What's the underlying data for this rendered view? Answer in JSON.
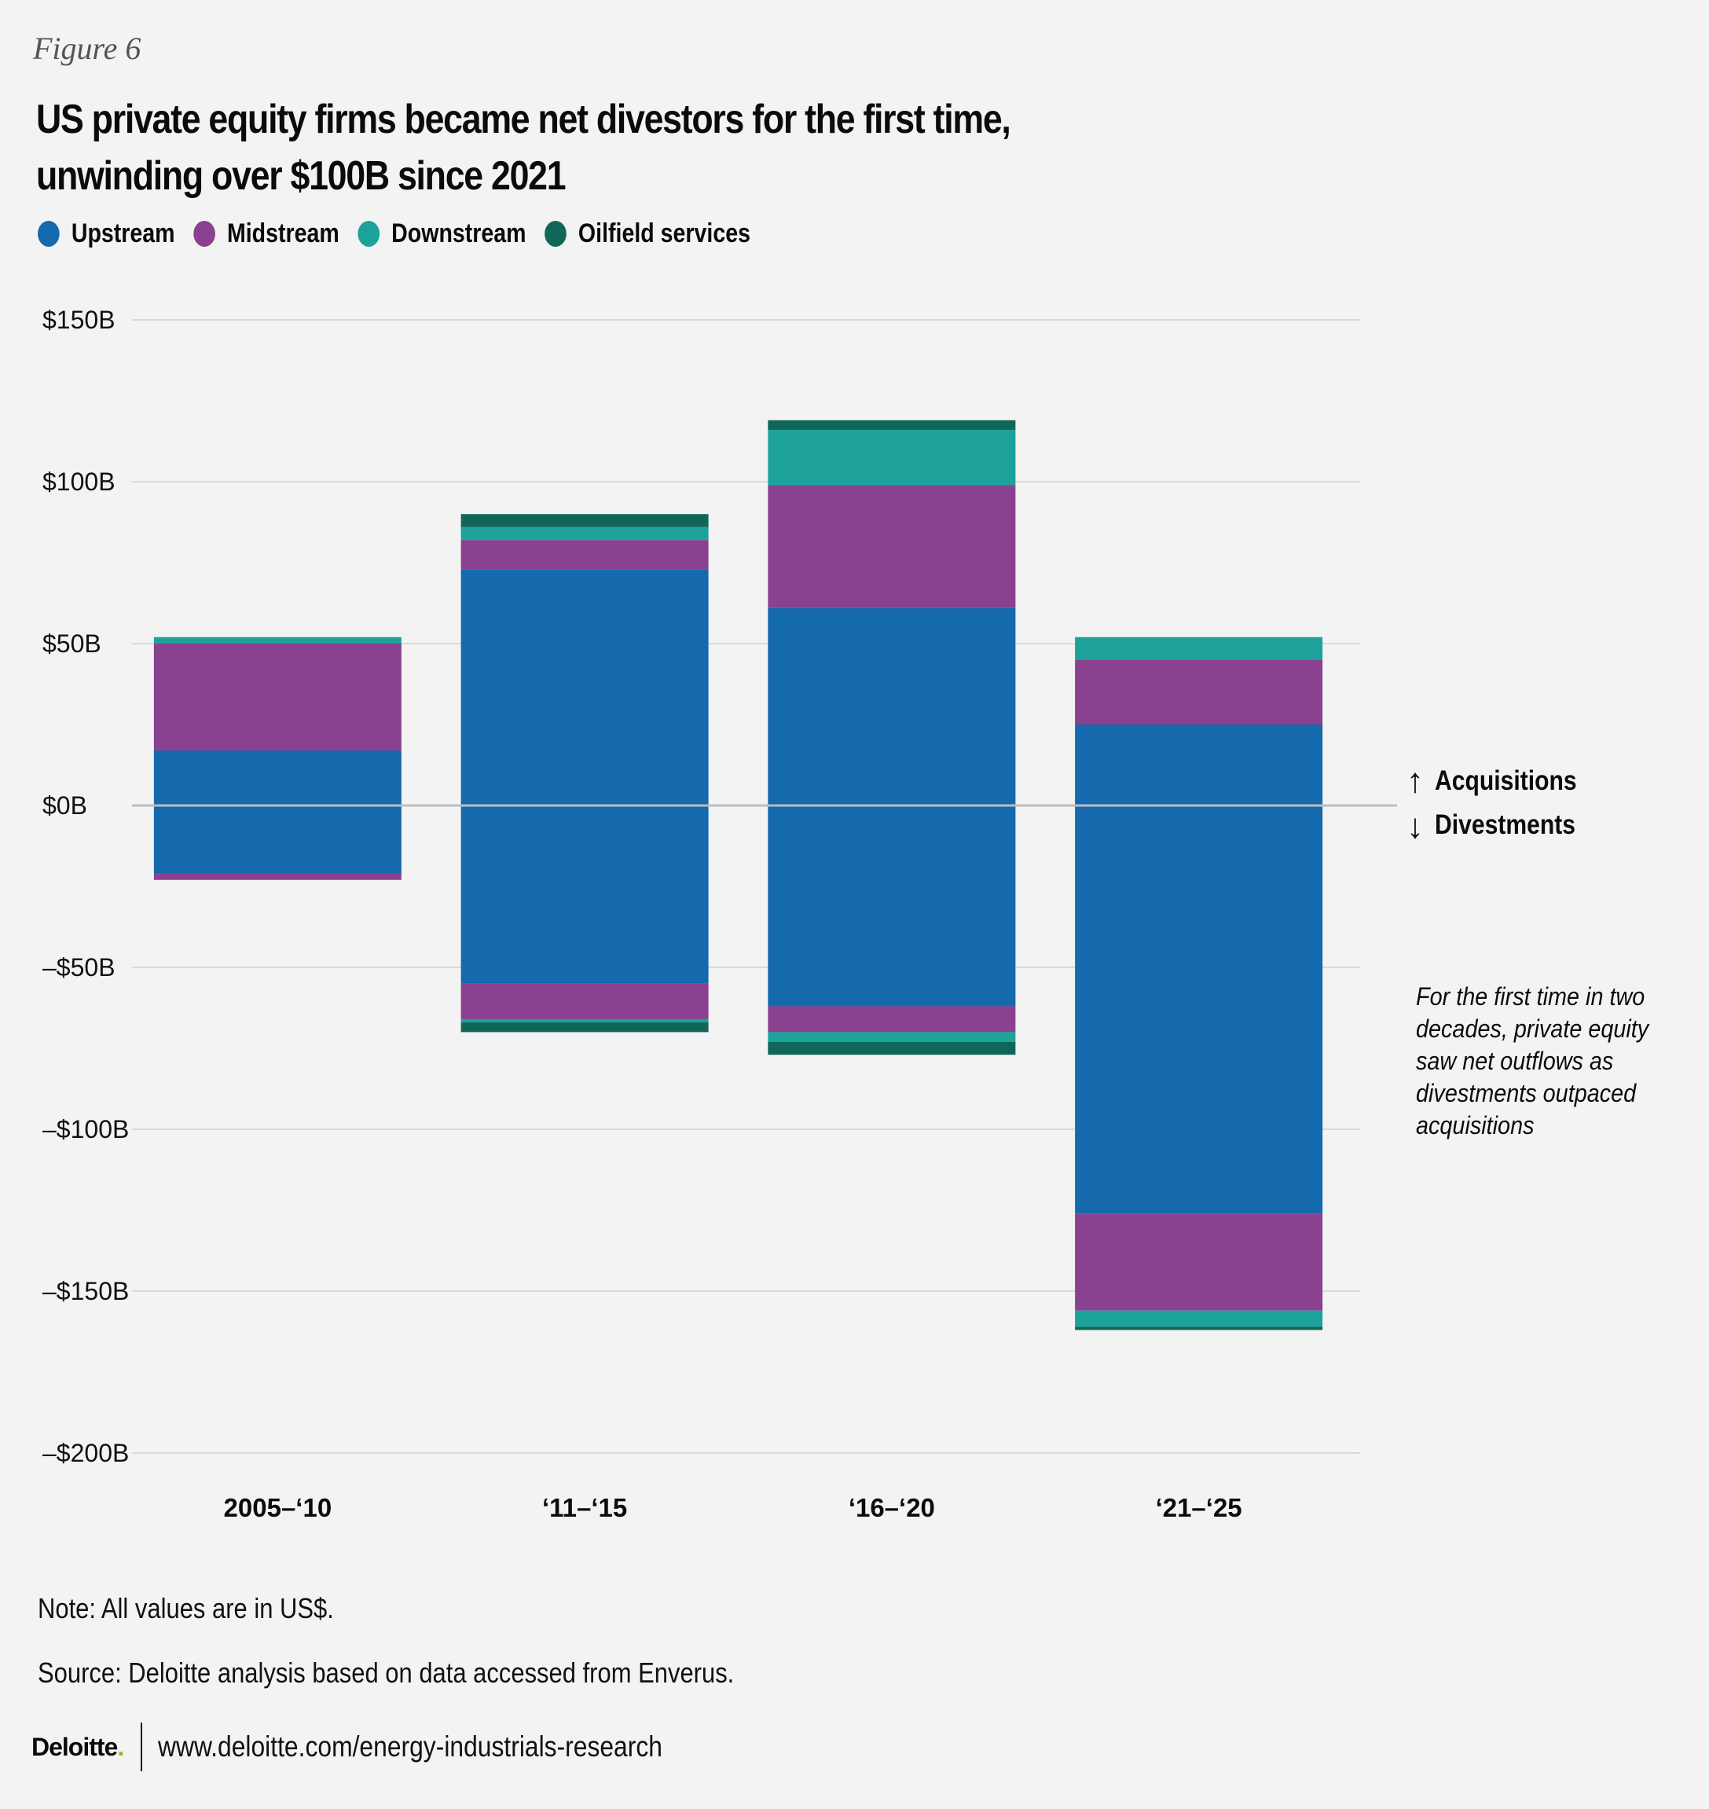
{
  "figure_label": "Figure 6",
  "title": "US private equity firms became net divestors for the first time, unwinding over $100B since 2021",
  "colors": {
    "upstream": "#1569ad",
    "midstream": "#8a418f",
    "downstream": "#1ca29b",
    "oilfield": "#106757",
    "grid": "#d9d9d9",
    "zero_line": "#bdbdbd"
  },
  "legend": [
    {
      "label": "Upstream",
      "color": "#1569ad"
    },
    {
      "label": "Midstream",
      "color": "#8a418f"
    },
    {
      "label": "Downstream",
      "color": "#1ca29b"
    },
    {
      "label": "Oilfield services",
      "color": "#106757"
    }
  ],
  "direction_labels": {
    "up_arrow": "↑",
    "up": "Acquisitions",
    "down_arrow": "↓",
    "down": "Divestments"
  },
  "annotation": "For the first time in two decades, private equity saw net outflows as divestments outpaced acquisitions",
  "note": "Note: All values are in US$.",
  "source": "Source: Deloitte analysis based on data accessed from Enverus.",
  "footer": {
    "logo": "Deloitte",
    "logo_dot": ".",
    "url": "www.deloitte.com/energy-industrials-research"
  },
  "chart_data": {
    "type": "bar",
    "stacked": true,
    "title": "US private equity firms became net divestors for the first time, unwinding over $100B since 2021",
    "xlabel": "",
    "ylabel": "",
    "unit": "US$ billions",
    "categories": [
      "2005–‘10",
      "‘11–‘15",
      "‘16–‘20",
      "‘21–‘25"
    ],
    "ylim": [
      -200,
      150
    ],
    "yticks": [
      150,
      100,
      50,
      0,
      -50,
      -100,
      -150,
      -200
    ],
    "ytick_labels": [
      "$150B",
      "$100B",
      "$50B",
      "$0B",
      "–$50B",
      "–$100B",
      "–$150B",
      "–$200B"
    ],
    "grid": true,
    "legend_position": "top-left",
    "series": [
      {
        "name": "Upstream",
        "key": "upstream",
        "acquisitions": [
          17,
          73,
          61,
          25
        ],
        "divestments": [
          -21,
          -55,
          -62,
          -126
        ]
      },
      {
        "name": "Midstream",
        "key": "midstream",
        "acquisitions": [
          33,
          9,
          38,
          20
        ],
        "divestments": [
          -2,
          -11,
          -8,
          -30
        ]
      },
      {
        "name": "Downstream",
        "key": "downstream",
        "acquisitions": [
          2,
          4,
          17,
          7
        ],
        "divestments": [
          0,
          -1,
          -3,
          -5
        ]
      },
      {
        "name": "Oilfield services",
        "key": "oilfield",
        "acquisitions": [
          0,
          4,
          3,
          0
        ],
        "divestments": [
          0,
          -3,
          -4,
          -1
        ]
      }
    ]
  }
}
